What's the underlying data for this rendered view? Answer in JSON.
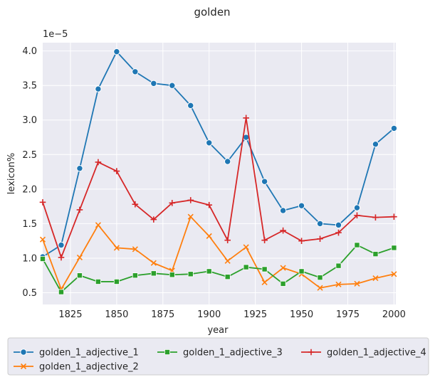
{
  "chart_data": {
    "type": "line",
    "title": "golden",
    "xlabel": "year",
    "ylabel": "lexicon%",
    "y_offset_label": "1e−5",
    "xlim": [
      1810,
      2001
    ],
    "ylim": [
      0.33,
      4.12
    ],
    "x_ticks": [
      1825,
      1850,
      1875,
      1900,
      1925,
      1950,
      1975,
      2000
    ],
    "x_tick_labels": [
      "1825",
      "1850",
      "1875",
      "1900",
      "1925",
      "1950",
      "1975",
      "2000"
    ],
    "y_ticks": [
      0.5,
      1.0,
      1.5,
      2.0,
      2.5,
      3.0,
      3.5,
      4.0
    ],
    "y_tick_labels": [
      "0.5",
      "1.0",
      "1.5",
      "2.0",
      "2.5",
      "3.0",
      "3.5",
      "4.0"
    ],
    "grid": true,
    "background": "#eaeaf2",
    "legend_position": "bottom",
    "x": [
      1810,
      1820,
      1830,
      1840,
      1850,
      1860,
      1870,
      1880,
      1890,
      1900,
      1910,
      1920,
      1930,
      1940,
      1950,
      1960,
      1970,
      1980,
      1990,
      2000
    ],
    "series": [
      {
        "name": "golden_1_adjective_1",
        "color": "#1f77b4",
        "marker": "circle",
        "values": [
          1.02,
          1.19,
          2.3,
          3.45,
          3.99,
          3.7,
          3.53,
          3.5,
          3.21,
          2.67,
          2.4,
          2.75,
          2.11,
          1.69,
          1.76,
          1.5,
          1.48,
          1.73,
          2.65,
          2.88
        ]
      },
      {
        "name": "golden_1_adjective_2",
        "color": "#ff7f0e",
        "marker": "x",
        "values": [
          1.27,
          0.55,
          1.01,
          1.48,
          1.15,
          1.13,
          0.93,
          0.82,
          1.6,
          1.32,
          0.96,
          1.16,
          0.65,
          0.86,
          0.77,
          0.57,
          0.62,
          0.63,
          0.71,
          0.77
        ]
      },
      {
        "name": "golden_1_adjective_3",
        "color": "#2ca02c",
        "marker": "square",
        "values": [
          0.99,
          0.51,
          0.75,
          0.66,
          0.66,
          0.75,
          0.78,
          0.76,
          0.77,
          0.81,
          0.73,
          0.87,
          0.84,
          0.63,
          0.81,
          0.72,
          0.89,
          1.19,
          1.06,
          1.15
        ]
      },
      {
        "name": "golden_1_adjective_4",
        "color": "#d62728",
        "marker": "plus",
        "values": [
          1.81,
          1.01,
          1.7,
          2.39,
          2.26,
          1.78,
          1.56,
          1.8,
          1.84,
          1.77,
          1.26,
          3.03,
          1.26,
          1.4,
          1.25,
          1.28,
          1.37,
          1.62,
          1.59,
          1.6
        ]
      }
    ]
  }
}
